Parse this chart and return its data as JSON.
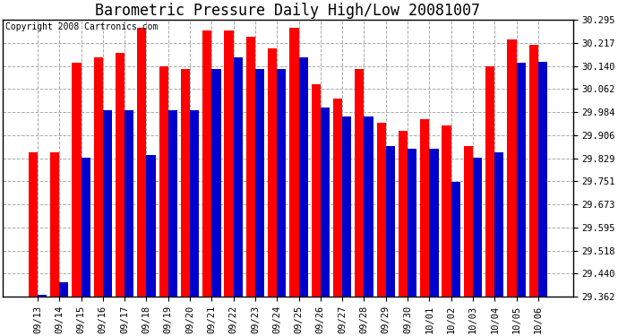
{
  "title": "Barometric Pressure Daily High/Low 20081007",
  "copyright": "Copyright 2008 Cartronics.com",
  "ylabel_right_ticks": [
    29.362,
    29.44,
    29.518,
    29.595,
    29.673,
    29.751,
    29.829,
    29.906,
    29.984,
    30.062,
    30.14,
    30.217,
    30.295
  ],
  "ylim": [
    29.362,
    30.295
  ],
  "categories": [
    "09/13",
    "09/14",
    "09/15",
    "09/16",
    "09/17",
    "09/18",
    "09/19",
    "09/20",
    "09/21",
    "09/22",
    "09/23",
    "09/24",
    "09/25",
    "09/26",
    "09/27",
    "09/28",
    "09/29",
    "09/30",
    "10/01",
    "10/02",
    "10/03",
    "10/04",
    "10/05",
    "10/06"
  ],
  "high_values": [
    29.85,
    29.85,
    30.15,
    30.17,
    30.185,
    30.27,
    30.14,
    30.13,
    30.26,
    30.26,
    30.24,
    30.2,
    30.27,
    30.08,
    30.03,
    30.13,
    29.95,
    29.92,
    29.96,
    29.94,
    29.87,
    30.14,
    30.23,
    30.21
  ],
  "low_values": [
    29.37,
    29.41,
    29.83,
    29.99,
    29.99,
    29.84,
    29.99,
    29.99,
    30.13,
    30.17,
    30.13,
    30.13,
    30.17,
    30.0,
    29.97,
    29.97,
    29.87,
    29.86,
    29.86,
    29.75,
    29.83,
    29.85,
    30.15,
    30.155
  ],
  "high_color": "#ff0000",
  "low_color": "#0000cc",
  "bg_color": "#ffffff",
  "grid_color": "#aaaaaa",
  "bar_width": 0.42,
  "title_fontsize": 12,
  "tick_fontsize": 7.5,
  "copyright_fontsize": 7,
  "figwidth": 6.9,
  "figheight": 3.75,
  "dpi": 100
}
